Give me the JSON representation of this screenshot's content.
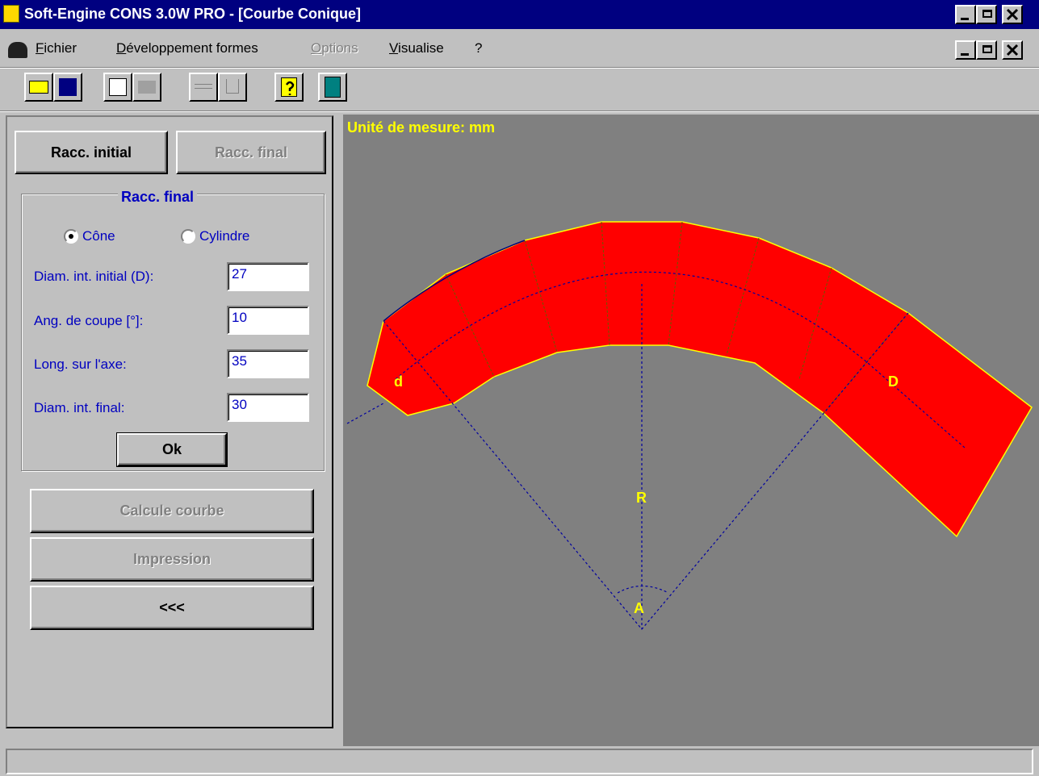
{
  "title_bar": {
    "title": "Soft-Engine CONS 3.0W PRO - [Courbe Conique]"
  },
  "menu": {
    "items": [
      "Fichier",
      "Développement formes",
      "Options",
      "Visualise",
      "?"
    ]
  },
  "panel": {
    "tabs": [
      "Racc. initial",
      "Racc. final"
    ],
    "group": {
      "title": "Racc. final",
      "radios": [
        "Cône",
        "Cylindre"
      ],
      "fields": [
        {
          "label": "Diam. int. initial (D):",
          "value": 27
        },
        {
          "label": "Ang. de coupe [°]:",
          "value": 10
        },
        {
          "label": "Long. sur l'axe:",
          "value": 35
        },
        {
          "label": "Diam. int. final:",
          "value": 30
        }
      ],
      "ok": "Ok"
    },
    "actions": [
      "Calcule courbe",
      "Impression",
      "<<<"
    ]
  },
  "canvas": {
    "unit_label": "Unité de mesure: mm",
    "labels": {
      "d": "d",
      "D": "D",
      "R": "R",
      "A": "A"
    }
  }
}
